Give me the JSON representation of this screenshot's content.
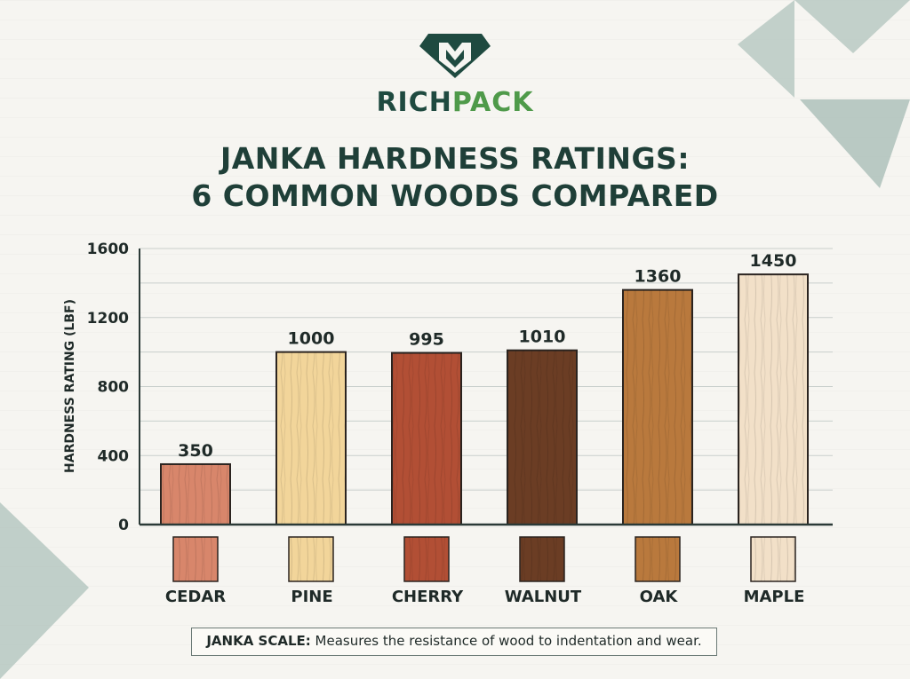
{
  "brand": {
    "part1": "RICH",
    "part2": "PACK",
    "logo_icon": "diamond-m-logo-icon"
  },
  "title": {
    "line1": "JANKA HARDNESS RATINGS:",
    "line2": "6 COMMON WOODS COMPARED"
  },
  "chart_data": {
    "type": "bar",
    "categories": [
      "CEDAR",
      "PINE",
      "CHERRY",
      "WALNUT",
      "OAK",
      "MAPLE"
    ],
    "values": [
      350,
      1000,
      995,
      1010,
      1360,
      1450
    ],
    "data_labels": [
      "350",
      "1000",
      "995",
      "1010",
      "1360",
      "1450"
    ],
    "ylabel": "HARDNESS RATING (LBF)",
    "xlabel": "",
    "ylim": [
      0,
      1600
    ],
    "yticks": [
      0,
      400,
      800,
      1200,
      1600
    ],
    "grid": true,
    "colors": [
      "#d8866b",
      "#f2d59a",
      "#b24f35",
      "#6b3d24",
      "#b9793d",
      "#f2e0c8"
    ]
  },
  "note": {
    "label": "JANKA SCALE:",
    "text": " Measures the resistance of wood to indentation and wear."
  },
  "colors": {
    "accent_dark": "#1f4a40",
    "accent_green": "#4f9a4a",
    "deco": "#aec1bb"
  }
}
